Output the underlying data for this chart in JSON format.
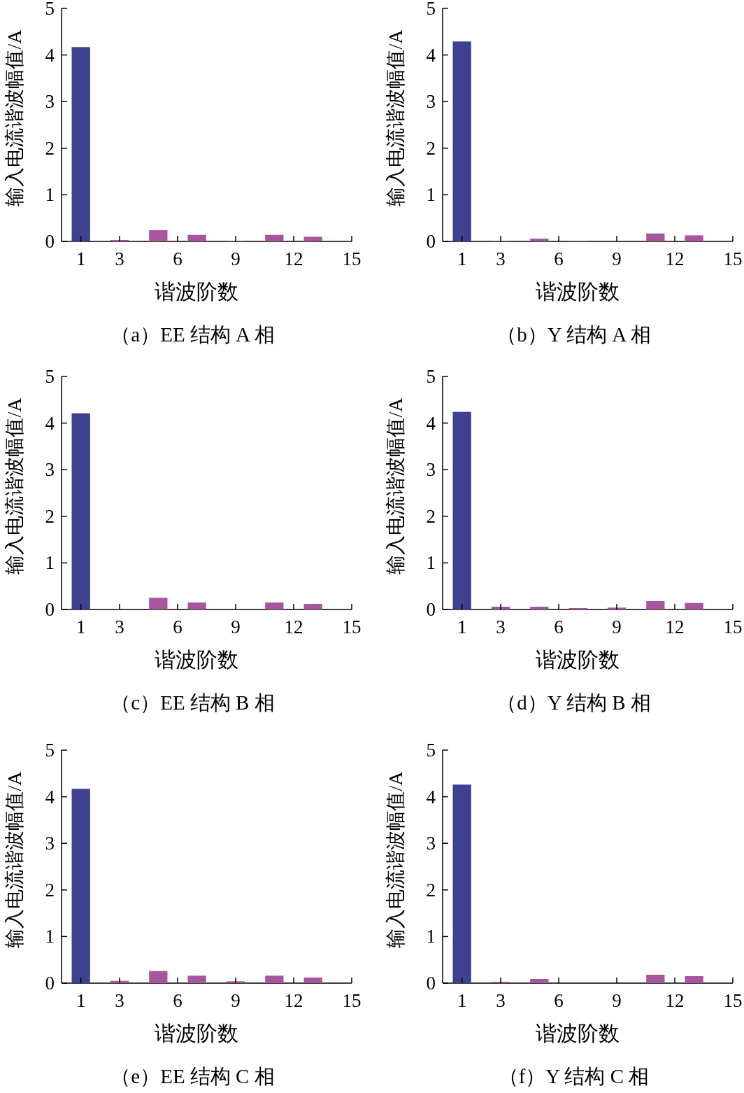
{
  "chart_data": [
    {
      "type": "bar",
      "x": [
        1,
        3,
        5,
        7,
        9,
        11,
        13
      ],
      "values": [
        4.17,
        0.03,
        0.24,
        0.14,
        0.01,
        0.14,
        0.1
      ],
      "colors": [
        "#3d4290",
        "#a8559f",
        "#a8559f",
        "#a8559f",
        "#a8559f",
        "#a8559f",
        "#a8559f"
      ],
      "xlim": [
        0,
        15
      ],
      "xticks": [
        1,
        3,
        6,
        9,
        12,
        15
      ],
      "ylim": [
        0,
        5
      ],
      "yticks": [
        0,
        1,
        2,
        3,
        4,
        5
      ],
      "xlabel": "谐波阶数",
      "ylabel": "输入电流谐波幅值/A",
      "annotations": [
        "（a）EE 结构 A 相"
      ]
    },
    {
      "type": "bar",
      "x": [
        1,
        3,
        5,
        7,
        9,
        11,
        13
      ],
      "values": [
        4.29,
        0.01,
        0.06,
        0.01,
        0,
        0.17,
        0.13
      ],
      "colors": [
        "#3d4290",
        "#a8559f",
        "#a8559f",
        "#a8559f",
        "#a8559f",
        "#a8559f",
        "#a8559f"
      ],
      "xlim": [
        0,
        15
      ],
      "xticks": [
        1,
        3,
        6,
        9,
        12,
        15
      ],
      "ylim": [
        0,
        5
      ],
      "yticks": [
        0,
        1,
        2,
        3,
        4,
        5
      ],
      "xlabel": "谐波阶数",
      "ylabel": "输入电流谐波幅值/A",
      "annotations": [
        "（b）Y 结构 A 相"
      ]
    },
    {
      "type": "bar",
      "x": [
        1,
        3,
        5,
        7,
        9,
        11,
        13
      ],
      "values": [
        4.21,
        0,
        0.25,
        0.15,
        0,
        0.15,
        0.12
      ],
      "colors": [
        "#3d4290",
        "#a8559f",
        "#a8559f",
        "#a8559f",
        "#a8559f",
        "#a8559f",
        "#a8559f"
      ],
      "xlim": [
        0,
        15
      ],
      "xticks": [
        1,
        3,
        6,
        9,
        12,
        15
      ],
      "ylim": [
        0,
        5
      ],
      "yticks": [
        0,
        1,
        2,
        3,
        4,
        5
      ],
      "xlabel": "谐波阶数",
      "ylabel": "输入电流谐波幅值/A",
      "annotations": [
        "（c）EE 结构 B 相"
      ]
    },
    {
      "type": "bar",
      "x": [
        1,
        3,
        5,
        7,
        9,
        11,
        13
      ],
      "values": [
        4.24,
        0.06,
        0.06,
        0.03,
        0.04,
        0.18,
        0.14
      ],
      "colors": [
        "#3d4290",
        "#a8559f",
        "#a8559f",
        "#a8559f",
        "#a8559f",
        "#a8559f",
        "#a8559f"
      ],
      "xlim": [
        0,
        15
      ],
      "xticks": [
        1,
        3,
        6,
        9,
        12,
        15
      ],
      "ylim": [
        0,
        5
      ],
      "yticks": [
        0,
        1,
        2,
        3,
        4,
        5
      ],
      "xlabel": "谐波阶数",
      "ylabel": "输入电流谐波幅值/A",
      "annotations": [
        "（d）Y 结构 B 相"
      ]
    },
    {
      "type": "bar",
      "x": [
        1,
        3,
        5,
        7,
        9,
        11,
        13
      ],
      "values": [
        4.17,
        0.05,
        0.26,
        0.16,
        0.04,
        0.16,
        0.12
      ],
      "colors": [
        "#3d4290",
        "#a8559f",
        "#a8559f",
        "#a8559f",
        "#a8559f",
        "#a8559f",
        "#a8559f"
      ],
      "xlim": [
        0,
        15
      ],
      "xticks": [
        1,
        3,
        6,
        9,
        12,
        15
      ],
      "ylim": [
        0,
        5
      ],
      "yticks": [
        0,
        1,
        2,
        3,
        4,
        5
      ],
      "xlabel": "谐波阶数",
      "ylabel": "输入电流谐波幅值/A",
      "annotations": [
        "（e）EE 结构 C 相"
      ]
    },
    {
      "type": "bar",
      "x": [
        1,
        3,
        5,
        7,
        9,
        11,
        13
      ],
      "values": [
        4.26,
        0.03,
        0.09,
        0,
        0,
        0.18,
        0.15
      ],
      "colors": [
        "#3d4290",
        "#a8559f",
        "#a8559f",
        "#a8559f",
        "#a8559f",
        "#a8559f",
        "#a8559f"
      ],
      "xlim": [
        0,
        15
      ],
      "xticks": [
        1,
        3,
        6,
        9,
        12,
        15
      ],
      "ylim": [
        0,
        5
      ],
      "yticks": [
        0,
        1,
        2,
        3,
        4,
        5
      ],
      "xlabel": "谐波阶数",
      "ylabel": "输入电流谐波幅值/A",
      "annotations": [
        "（f）Y 结构 C 相"
      ]
    }
  ]
}
